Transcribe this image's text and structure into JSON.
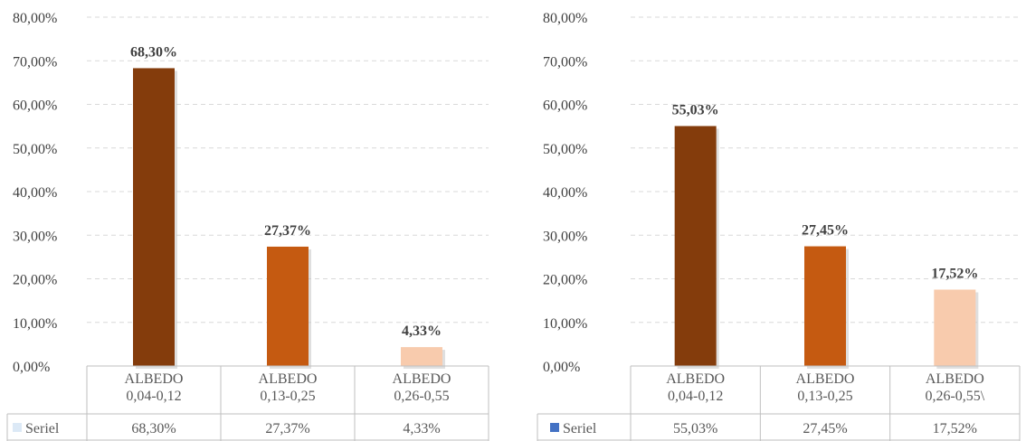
{
  "chart_data": [
    {
      "type": "bar",
      "title": "",
      "xlabel": "",
      "ylabel": "",
      "ylim": [
        0,
        80
      ],
      "ytick_labels": [
        "0,00%",
        "10,00%",
        "20,00%",
        "30,00%",
        "40,00%",
        "50,00%",
        "60,00%",
        "70,00%",
        "80,00%"
      ],
      "categories": [
        [
          "ALBEDO",
          "0,04-0,12"
        ],
        [
          "ALBEDO",
          "0,13-0,25"
        ],
        [
          "ALBEDO",
          "0,26-0,55"
        ]
      ],
      "series": [
        {
          "name": "Seriel",
          "values": [
            68.3,
            27.37,
            4.33
          ],
          "labels": [
            "68,30%",
            "27,37%",
            "4,33%"
          ],
          "colors": [
            "#843c0c",
            "#c55a11",
            "#f8cbad"
          ]
        }
      ],
      "legend_key_color": "#dce9f6",
      "grid": true,
      "data_table": true
    },
    {
      "type": "bar",
      "title": "",
      "xlabel": "",
      "ylabel": "",
      "ylim": [
        0,
        80
      ],
      "ytick_labels": [
        "0,00%",
        "10,00%",
        "20,00%",
        "30,00%",
        "40,00%",
        "50,00%",
        "60,00%",
        "70,00%",
        "80,00%"
      ],
      "categories": [
        [
          "ALBEDO",
          "0,04-0,12"
        ],
        [
          "ALBEDO",
          "0,13-0,25"
        ],
        [
          "ALBEDO",
          "0,26-0,55\\"
        ]
      ],
      "series": [
        {
          "name": "Seriel",
          "values": [
            55.03,
            27.45,
            17.52
          ],
          "labels": [
            "55,03%",
            "27,45%",
            "17,52%"
          ],
          "colors": [
            "#843c0c",
            "#c55a11",
            "#f8cbad"
          ]
        }
      ],
      "legend_key_color": "#4472c4",
      "grid": true,
      "data_table": true
    }
  ]
}
